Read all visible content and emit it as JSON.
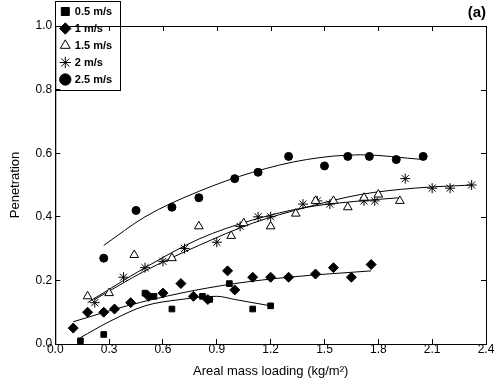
{
  "chart_data": {
    "type": "scatter",
    "title": "(a)",
    "x_label": "Areal mass loading (kg/m²)",
    "y_label": "Penetration",
    "xlim": [
      0,
      2.4
    ],
    "ylim": [
      0,
      1
    ],
    "xticks": [
      {
        "value": 0,
        "label": "0.0"
      },
      {
        "value": 0.3,
        "label": "0.3"
      },
      {
        "value": 0.6,
        "label": "0.6"
      },
      {
        "value": 0.9,
        "label": "0.9"
      },
      {
        "value": 1.2,
        "label": "1.2"
      },
      {
        "value": 1.5,
        "label": "1.5"
      },
      {
        "value": 1.8,
        "label": "1.8"
      },
      {
        "value": 2.1,
        "label": "2.1"
      },
      {
        "value": 2.4,
        "label": "2.4"
      }
    ],
    "yticks": [
      {
        "value": 0,
        "label": "0.0"
      },
      {
        "value": 0.2,
        "label": "0.2"
      },
      {
        "value": 0.4,
        "label": "0.4"
      },
      {
        "value": 0.6,
        "label": "0.6"
      },
      {
        "value": 0.8,
        "label": "0.8"
      },
      {
        "value": 1,
        "label": "1.0"
      }
    ],
    "grid": false,
    "legend": "upper left",
    "series": [
      {
        "name": "0.5 m/s",
        "color": "#000000",
        "marker": "square",
        "line_style": "solid",
        "x": [
          0.14,
          0.27,
          0.5,
          0.55,
          0.65,
          0.82,
          0.86,
          0.97,
          1.1,
          1.2
        ],
        "values": [
          0.01,
          0.03,
          0.16,
          0.15,
          0.11,
          0.15,
          0.14,
          0.19,
          0.11,
          0.12
        ],
        "trend": {
          "x": [
            0.14,
            0.3,
            0.5,
            0.7,
            0.9,
            1.0,
            1.2
          ],
          "values": [
            0.02,
            0.07,
            0.12,
            0.14,
            0.15,
            0.14,
            0.12
          ]
        }
      },
      {
        "name": "1 m/s",
        "color": "#000000",
        "marker": "diamond",
        "line_style": "solid",
        "x": [
          0.1,
          0.18,
          0.27,
          0.33,
          0.42,
          0.52,
          0.6,
          0.7,
          0.77,
          0.85,
          0.96,
          1.0,
          1.1,
          1.2,
          1.3,
          1.45,
          1.55,
          1.65,
          1.76
        ],
        "values": [
          0.05,
          0.1,
          0.1,
          0.11,
          0.13,
          0.15,
          0.16,
          0.19,
          0.15,
          0.14,
          0.23,
          0.17,
          0.21,
          0.21,
          0.21,
          0.22,
          0.24,
          0.21,
          0.25
        ],
        "trend": {
          "x": [
            0.1,
            0.4,
            0.7,
            1.0,
            1.3,
            1.76
          ],
          "values": [
            0.07,
            0.12,
            0.16,
            0.19,
            0.21,
            0.23
          ]
        }
      },
      {
        "name": "1.5 m/s",
        "color": "#000000",
        "marker": "triangle-open",
        "line_style": "solid",
        "x": [
          0.18,
          0.3,
          0.44,
          0.65,
          0.8,
          0.98,
          1.05,
          1.2,
          1.34,
          1.45,
          1.55,
          1.63,
          1.72,
          1.8,
          1.92
        ],
        "values": [
          0.15,
          0.16,
          0.28,
          0.27,
          0.37,
          0.34,
          0.38,
          0.37,
          0.41,
          0.45,
          0.45,
          0.43,
          0.46,
          0.47,
          0.45
        ],
        "trend": {
          "x": [
            0.18,
            0.5,
            0.8,
            1.1,
            1.4,
            1.7,
            1.92
          ],
          "values": [
            0.13,
            0.24,
            0.33,
            0.39,
            0.43,
            0.45,
            0.46
          ]
        }
      },
      {
        "name": "2 m/s",
        "color": "#000000",
        "marker": "star",
        "line_style": "solid",
        "x": [
          0.22,
          0.38,
          0.5,
          0.6,
          0.72,
          0.9,
          1.03,
          1.13,
          1.2,
          1.38,
          1.46,
          1.53,
          1.72,
          1.78,
          1.95,
          2.1,
          2.2,
          2.32
        ],
        "values": [
          0.13,
          0.21,
          0.24,
          0.26,
          0.3,
          0.32,
          0.37,
          0.4,
          0.4,
          0.44,
          0.45,
          0.44,
          0.45,
          0.45,
          0.52,
          0.49,
          0.49,
          0.5
        ],
        "trend": {
          "x": [
            0.22,
            0.5,
            0.8,
            1.1,
            1.4,
            1.7,
            2.0,
            2.32
          ],
          "values": [
            0.14,
            0.23,
            0.31,
            0.38,
            0.43,
            0.47,
            0.49,
            0.5
          ]
        }
      },
      {
        "name": "2.5 m/s",
        "color": "#000000",
        "marker": "circle",
        "line_style": "solid",
        "x": [
          0.27,
          0.45,
          0.65,
          0.8,
          1.0,
          1.13,
          1.3,
          1.5,
          1.63,
          1.75,
          1.9,
          2.05
        ],
        "values": [
          0.27,
          0.42,
          0.43,
          0.46,
          0.52,
          0.54,
          0.59,
          0.56,
          0.59,
          0.59,
          0.58,
          0.59
        ],
        "trend": {
          "x": [
            0.27,
            0.5,
            0.8,
            1.1,
            1.4,
            1.7,
            2.05
          ],
          "values": [
            0.31,
            0.4,
            0.48,
            0.54,
            0.58,
            0.595,
            0.58
          ]
        }
      }
    ]
  }
}
